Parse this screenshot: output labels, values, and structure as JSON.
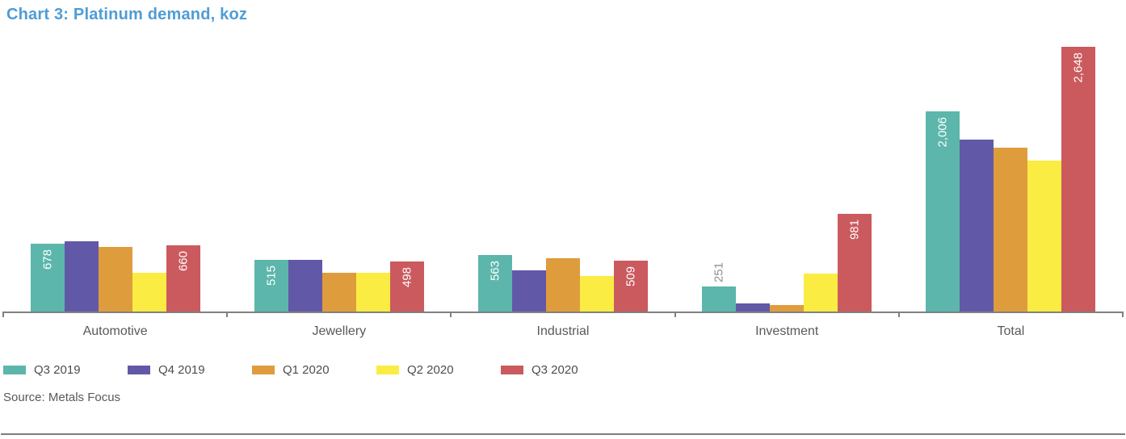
{
  "page": {
    "source": "Source: Metals Focus"
  },
  "colors": {
    "title": "#4f9cd5",
    "axis": "#808080",
    "category_text": "#595959",
    "legend_text": "#4d4d4d",
    "source_text": "#595959",
    "value_label_inside": "#ffffff",
    "value_label_outside": "#8f8f8f"
  },
  "chart_data": {
    "type": "bar",
    "title": "Chart 3: Platinum demand, koz",
    "categories": [
      "Automotive",
      "Jewellery",
      "Industrial",
      "Investment",
      "Total"
    ],
    "series": [
      {
        "name": "Q3 2019",
        "color": "#5cb6ab",
        "values": [
          678,
          515,
          563,
          251,
          2006
        ],
        "labels": [
          "678",
          "515",
          "563",
          "251",
          "2,006"
        ]
      },
      {
        "name": "Q4 2019",
        "color": "#6159a7",
        "values": [
          700,
          520,
          415,
          85,
          1720
        ],
        "labels": [
          null,
          null,
          null,
          null,
          null
        ]
      },
      {
        "name": "Q1 2020",
        "color": "#df9c3d",
        "values": [
          650,
          390,
          530,
          65,
          1640
        ],
        "labels": [
          null,
          null,
          null,
          null,
          null
        ]
      },
      {
        "name": "Q2 2020",
        "color": "#fbec44",
        "values": [
          392,
          390,
          356,
          380,
          1515
        ],
        "labels": [
          null,
          null,
          null,
          null,
          null
        ]
      },
      {
        "name": "Q3 2020",
        "color": "#cb5a5e",
        "values": [
          660,
          498,
          509,
          981,
          2648
        ],
        "labels": [
          "660",
          "498",
          "509",
          "981",
          "2,648"
        ]
      }
    ],
    "ylim": [
      0,
      2700
    ],
    "grid": false,
    "legend_position": "bottom",
    "value_labels_rotated": "90deg counterclockwise, read bottom-to-top"
  }
}
